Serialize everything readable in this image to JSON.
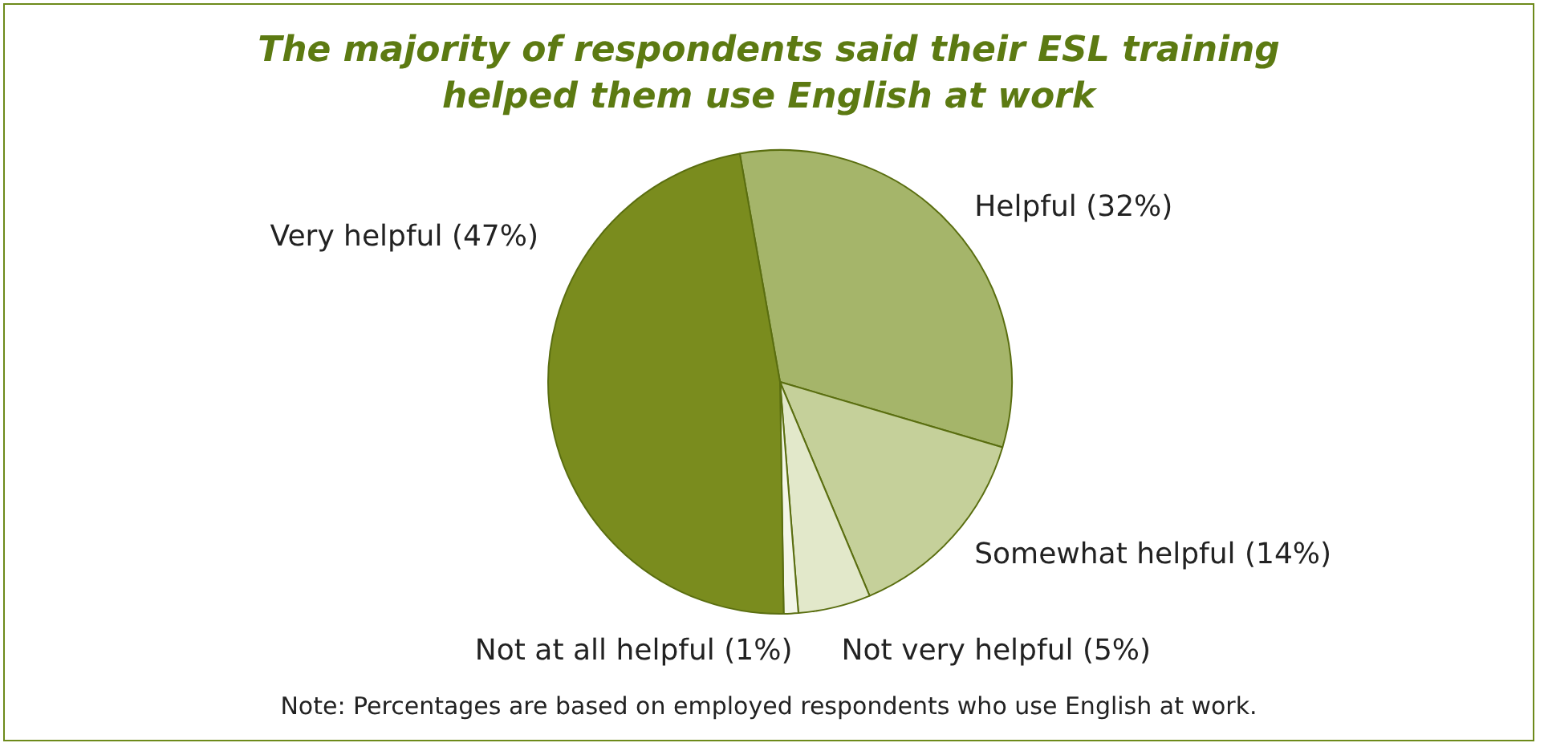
{
  "chart_data": {
    "type": "pie",
    "title": "The majority of respondents said their ESL training\nhelped them use English at work",
    "categories": [
      "Helpful",
      "Somewhat helpful",
      "Not very helpful",
      "Not at all helpful",
      "Very helpful"
    ],
    "values": [
      32,
      14,
      5,
      1,
      47
    ],
    "colors": [
      "#a5b56a",
      "#c5d09a",
      "#e2e8ca",
      "#f3f6e8",
      "#7a8c1e"
    ],
    "value_labels": [
      "(32%)",
      "(14%)",
      "(5%)",
      "(1%)",
      "(47%)"
    ],
    "annotations": [
      "Note: Percentages are based on employed respondents who use English at work."
    ],
    "legend": false
  }
}
